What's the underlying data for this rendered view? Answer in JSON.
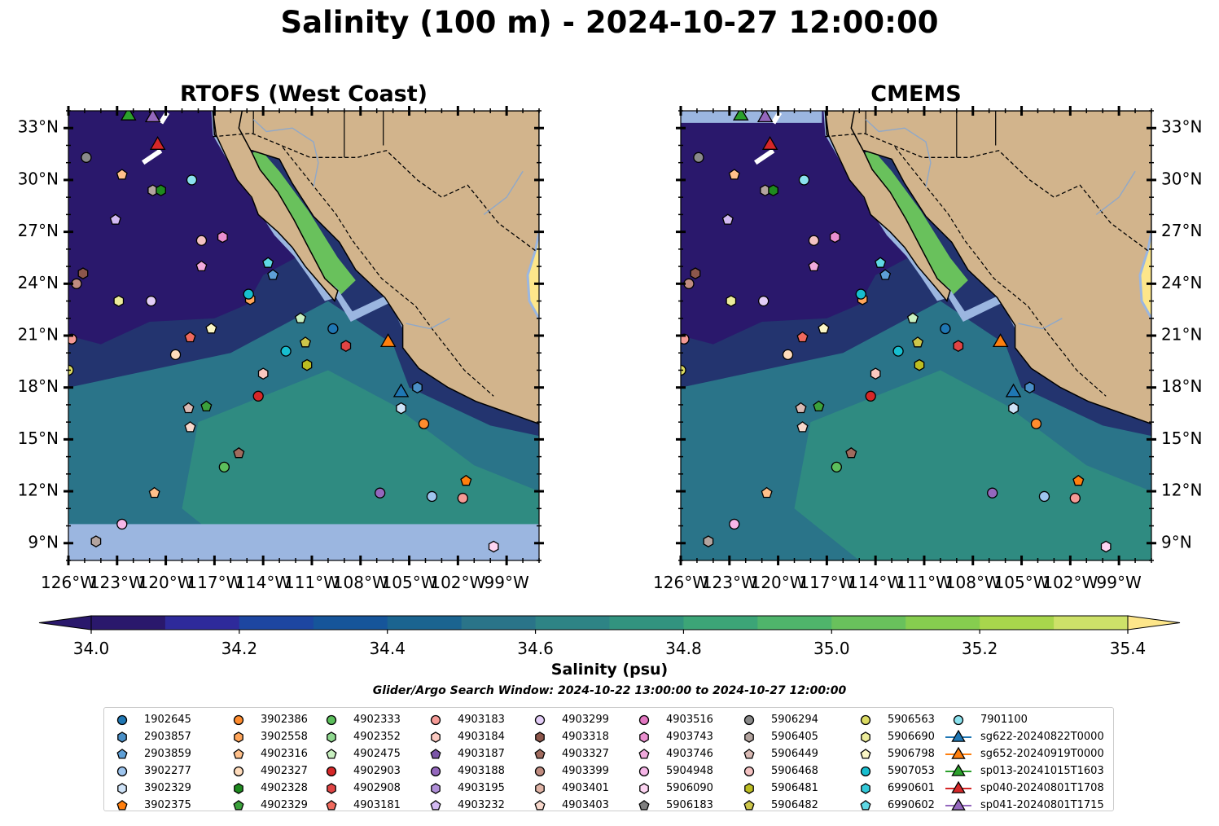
{
  "title": "Salinity (100 m) - 2024-10-27 12:00:00",
  "panels": [
    {
      "title": "RTOFS (West Coast)"
    },
    {
      "title": "CMEMS"
    }
  ],
  "map": {
    "lon_range": [
      -126,
      -97
    ],
    "lat_range": [
      8,
      34
    ],
    "lon_ticks": [
      "126°W",
      "123°W",
      "120°W",
      "117°W",
      "114°W",
      "111°W",
      "108°W",
      "105°W",
      "102°W",
      "99°W"
    ],
    "lat_ticks": [
      "9°N",
      "12°N",
      "15°N",
      "18°N",
      "21°N",
      "24°N",
      "27°N",
      "30°N",
      "33°N"
    ],
    "land_color": "#d2b48c",
    "shelf_color": "#9bb6e0",
    "rtofs_nodata_below_lat": 10.1
  },
  "colorbar": {
    "label": "Salinity (psu)",
    "range": [
      34.0,
      35.4
    ],
    "extend": "both",
    "tick_labels": [
      "34.0",
      "34.2",
      "34.4",
      "34.6",
      "34.8",
      "35.0",
      "35.2",
      "35.4"
    ],
    "colors": [
      "#2a186c",
      "#2e2a9b",
      "#1d46a1",
      "#16559a",
      "#1b6490",
      "#2a7489",
      "#2e8485",
      "#32937f",
      "#3ca577",
      "#4fb46b",
      "#69c15c",
      "#86cd4f",
      "#a8d64c",
      "#cde169",
      "#fde68a"
    ]
  },
  "search_window": "Glider/Argo Search Window: 2024-10-22 13:00:00 to 2024-10-27 12:00:00",
  "legend": {
    "columns": [
      [
        {
          "label": "1902645",
          "marker": "circle",
          "color": "#1f77b4"
        },
        {
          "label": "2903857",
          "marker": "hexagon",
          "color": "#4a8fc7"
        },
        {
          "label": "2903859",
          "marker": "pentagon",
          "color": "#5e9fd6"
        },
        {
          "label": "3902277",
          "marker": "circle",
          "color": "#9ec5ee"
        },
        {
          "label": "3902329",
          "marker": "hexagon",
          "color": "#cfe3f8"
        },
        {
          "label": "3902375",
          "marker": "pentagon",
          "color": "#ff7f0e"
        }
      ],
      [
        {
          "label": "3902386",
          "marker": "circle",
          "color": "#ff8c2e"
        },
        {
          "label": "3902558",
          "marker": "hexagon",
          "color": "#ffa55a"
        },
        {
          "label": "4902316",
          "marker": "pentagon",
          "color": "#ffc08a"
        },
        {
          "label": "4902327",
          "marker": "circle",
          "color": "#ffdcbc"
        },
        {
          "label": "4902328",
          "marker": "hexagon",
          "color": "#1f8a1f"
        },
        {
          "label": "4902329",
          "marker": "pentagon",
          "color": "#3ba13b"
        }
      ],
      [
        {
          "label": "4902333",
          "marker": "circle",
          "color": "#5cbf5c"
        },
        {
          "label": "4902352",
          "marker": "hexagon",
          "color": "#8fd88f"
        },
        {
          "label": "4902475",
          "marker": "pentagon",
          "color": "#c8f0c0"
        },
        {
          "label": "4902903",
          "marker": "circle",
          "color": "#d62728"
        },
        {
          "label": "4902908",
          "marker": "hexagon",
          "color": "#e04444"
        },
        {
          "label": "4903181",
          "marker": "pentagon",
          "color": "#f06a5e"
        }
      ],
      [
        {
          "label": "4903183",
          "marker": "circle",
          "color": "#f59a96"
        },
        {
          "label": "4903184",
          "marker": "hexagon",
          "color": "#fbc9c0"
        },
        {
          "label": "4903187",
          "marker": "pentagon",
          "color": "#7b55a8"
        },
        {
          "label": "4903188",
          "marker": "circle",
          "color": "#9467bd"
        },
        {
          "label": "4903195",
          "marker": "hexagon",
          "color": "#b08fd8"
        },
        {
          "label": "4903232",
          "marker": "pentagon",
          "color": "#d3baf2"
        }
      ],
      [
        {
          "label": "4903299",
          "marker": "circle",
          "color": "#e3cdf7"
        },
        {
          "label": "4903318",
          "marker": "hexagon",
          "color": "#8c564b"
        },
        {
          "label": "4903327",
          "marker": "pentagon",
          "color": "#a06b5e"
        },
        {
          "label": "4903399",
          "marker": "circle",
          "color": "#c08c80"
        },
        {
          "label": "4903401",
          "marker": "hexagon",
          "color": "#e0b4a6"
        },
        {
          "label": "4903403",
          "marker": "pentagon",
          "color": "#f8d8cc"
        }
      ],
      [
        {
          "label": "4903516",
          "marker": "circle",
          "color": "#e377c2"
        },
        {
          "label": "4903743",
          "marker": "hexagon",
          "color": "#ea8fcf"
        },
        {
          "label": "4903746",
          "marker": "pentagon",
          "color": "#f0a9dc"
        },
        {
          "label": "5904948",
          "marker": "circle",
          "color": "#f7b6e8"
        },
        {
          "label": "5906090",
          "marker": "hexagon",
          "color": "#fdd5f2"
        },
        {
          "label": "5906183",
          "marker": "pentagon",
          "color": "#7f7f7f"
        }
      ],
      [
        {
          "label": "5906294",
          "marker": "circle",
          "color": "#8a8a8a"
        },
        {
          "label": "5906405",
          "marker": "hexagon",
          "color": "#b3a49f"
        },
        {
          "label": "5906449",
          "marker": "pentagon",
          "color": "#d9bab4"
        },
        {
          "label": "5906468",
          "marker": "circle",
          "color": "#f4c2c2"
        },
        {
          "label": "5906481",
          "marker": "hexagon",
          "color": "#bcbd22"
        },
        {
          "label": "5906482",
          "marker": "pentagon",
          "color": "#cdc64a"
        }
      ],
      [
        {
          "label": "5906563",
          "marker": "circle",
          "color": "#dbdb62"
        },
        {
          "label": "5906690",
          "marker": "hexagon",
          "color": "#ecec9a"
        },
        {
          "label": "5906798",
          "marker": "pentagon",
          "color": "#fbf7c6"
        },
        {
          "label": "5907053",
          "marker": "circle",
          "color": "#17becf"
        },
        {
          "label": "6990601",
          "marker": "hexagon",
          "color": "#33c9d9"
        },
        {
          "label": "6990602",
          "marker": "pentagon",
          "color": "#5fd8e4"
        }
      ],
      [
        {
          "label": "7901100",
          "marker": "circle",
          "color": "#8be2ee"
        },
        {
          "label": "sg622-20240822T0000",
          "marker": "triangle-line",
          "color": "#1f77b4"
        },
        {
          "label": "sg652-20240919T0000",
          "marker": "triangle-line",
          "color": "#ff7f0e"
        },
        {
          "label": "sp013-20241015T1603",
          "marker": "triangle-line",
          "color": "#2ca02c"
        },
        {
          "label": "sp040-20240801T1708",
          "marker": "triangle-line",
          "color": "#d62728"
        },
        {
          "label": "sp041-20240801T1715",
          "marker": "triangle-line",
          "color": "#9467bd"
        }
      ]
    ]
  },
  "platforms": [
    {
      "id": "5906294",
      "lon": -124.9,
      "lat": 31.3,
      "marker": "circle",
      "color": "#8a8a8a"
    },
    {
      "id": "4902316",
      "lon": -122.7,
      "lat": 30.3,
      "marker": "pentagon",
      "color": "#ffc08a"
    },
    {
      "id": "5906405",
      "lon": -120.8,
      "lat": 29.4,
      "marker": "hexagon",
      "color": "#b3a49f"
    },
    {
      "id": "4902328",
      "lon": -120.3,
      "lat": 29.4,
      "marker": "hexagon",
      "color": "#1f8a1f"
    },
    {
      "id": "7901100",
      "lon": -118.4,
      "lat": 30.0,
      "marker": "circle",
      "color": "#8be2ee"
    },
    {
      "id": "4903232",
      "lon": -123.1,
      "lat": 27.7,
      "marker": "pentagon",
      "color": "#d3baf2"
    },
    {
      "id": "5906468",
      "lon": -117.8,
      "lat": 26.5,
      "marker": "circle",
      "color": "#f4c2c2"
    },
    {
      "id": "4903743",
      "lon": -116.5,
      "lat": 26.7,
      "marker": "hexagon",
      "color": "#ea8fcf"
    },
    {
      "id": "4903746",
      "lon": -117.8,
      "lat": 25.0,
      "marker": "pentagon",
      "color": "#f0a9dc"
    },
    {
      "id": "4903318",
      "lon": -125.1,
      "lat": 24.6,
      "marker": "hexagon",
      "color": "#8c564b"
    },
    {
      "id": "4903399",
      "lon": -125.5,
      "lat": 24.0,
      "marker": "circle",
      "color": "#c08c80"
    },
    {
      "id": "6990602",
      "lon": -113.7,
      "lat": 25.2,
      "marker": "pentagon",
      "color": "#5fd8e4"
    },
    {
      "id": "2903859",
      "lon": -113.4,
      "lat": 24.5,
      "marker": "pentagon",
      "color": "#5e9fd6"
    },
    {
      "id": "5906690",
      "lon": -122.9,
      "lat": 23.0,
      "marker": "hexagon",
      "color": "#ecec9a"
    },
    {
      "id": "4903299",
      "lon": -120.9,
      "lat": 23.0,
      "marker": "circle",
      "color": "#e3cdf7"
    },
    {
      "id": "3902558",
      "lon": -114.8,
      "lat": 23.1,
      "marker": "hexagon",
      "color": "#ffa55a"
    },
    {
      "id": "5907053",
      "lon": -114.9,
      "lat": 23.4,
      "marker": "circle",
      "color": "#17becf"
    },
    {
      "id": "4902475",
      "lon": -111.7,
      "lat": 22.0,
      "marker": "pentagon",
      "color": "#c8f0c0"
    },
    {
      "id": "1902645",
      "lon": -109.7,
      "lat": 21.4,
      "marker": "circle",
      "color": "#1f77b4"
    },
    {
      "id": "5906798",
      "lon": -117.2,
      "lat": 21.4,
      "marker": "pentagon",
      "color": "#fbf7c6"
    },
    {
      "id": "4903181",
      "lon": -118.5,
      "lat": 20.9,
      "marker": "pentagon",
      "color": "#f06a5e"
    },
    {
      "id": "4903183",
      "lon": -125.8,
      "lat": 20.8,
      "marker": "circle",
      "color": "#f59a96"
    },
    {
      "id": "5906482",
      "lon": -111.4,
      "lat": 20.6,
      "marker": "pentagon",
      "color": "#cdc64a"
    },
    {
      "id": "4902908",
      "lon": -108.9,
      "lat": 20.4,
      "marker": "hexagon",
      "color": "#e04444"
    },
    {
      "id": "5907053b",
      "lon": -112.6,
      "lat": 20.1,
      "marker": "circle",
      "color": "#17becf"
    },
    {
      "id": "4902327",
      "lon": -119.4,
      "lat": 19.9,
      "marker": "circle",
      "color": "#ffdcbc"
    },
    {
      "id": "5906481",
      "lon": -111.3,
      "lat": 19.3,
      "marker": "hexagon",
      "color": "#bcbd22"
    },
    {
      "id": "5906563",
      "lon": -126.0,
      "lat": 19.0,
      "marker": "circle",
      "color": "#dbdb62"
    },
    {
      "id": "4903184",
      "lon": -114.0,
      "lat": 18.8,
      "marker": "hexagon",
      "color": "#fbc9c0"
    },
    {
      "id": "2903857",
      "lon": -104.5,
      "lat": 18.0,
      "marker": "hexagon",
      "color": "#4a8fc7"
    },
    {
      "id": "4902903",
      "lon": -114.3,
      "lat": 17.5,
      "marker": "circle",
      "color": "#d62728"
    },
    {
      "id": "4902329",
      "lon": -117.5,
      "lat": 16.9,
      "marker": "pentagon",
      "color": "#3ba13b"
    },
    {
      "id": "5906449",
      "lon": -118.6,
      "lat": 16.8,
      "marker": "pentagon",
      "color": "#d9bab4"
    },
    {
      "id": "3902329",
      "lon": -105.5,
      "lat": 16.8,
      "marker": "hexagon",
      "color": "#cfe3f8"
    },
    {
      "id": "3902386",
      "lon": -104.1,
      "lat": 15.9,
      "marker": "circle",
      "color": "#ff8c2e"
    },
    {
      "id": "4903403",
      "lon": -118.5,
      "lat": 15.7,
      "marker": "pentagon",
      "color": "#f8d8cc"
    },
    {
      "id": "4903327",
      "lon": -115.5,
      "lat": 14.2,
      "marker": "pentagon",
      "color": "#a06b5e"
    },
    {
      "id": "4902333",
      "lon": -116.4,
      "lat": 13.4,
      "marker": "circle",
      "color": "#5cbf5c"
    },
    {
      "id": "3902375",
      "lon": -101.5,
      "lat": 12.6,
      "marker": "pentagon",
      "color": "#ff7f0e"
    },
    {
      "id": "4903188",
      "lon": -106.8,
      "lat": 11.9,
      "marker": "circle",
      "color": "#9467bd"
    },
    {
      "id": "3902277",
      "lon": -103.6,
      "lat": 11.7,
      "marker": "circle",
      "color": "#9ec5ee"
    },
    {
      "id": "4903183b",
      "lon": -101.7,
      "lat": 11.6,
      "marker": "circle",
      "color": "#f59a96"
    },
    {
      "id": "4902316b",
      "lon": -120.7,
      "lat": 11.9,
      "marker": "pentagon",
      "color": "#ffc08a"
    },
    {
      "id": "5904948",
      "lon": -122.7,
      "lat": 10.1,
      "marker": "circle",
      "color": "#f7b6e8"
    },
    {
      "id": "5906405b",
      "lon": -124.3,
      "lat": 9.1,
      "marker": "hexagon",
      "color": "#b3a49f"
    },
    {
      "id": "5906090",
      "lon": -99.8,
      "lat": 8.8,
      "marker": "hexagon",
      "color": "#fdd5f2"
    }
  ],
  "gliders": [
    {
      "id": "sp013-20241015T1603",
      "lon": -122.3,
      "lat": 33.8,
      "color": "#2ca02c"
    },
    {
      "id": "sp041-20240801T1715",
      "lon": -120.8,
      "lat": 33.7,
      "color": "#9467bd"
    },
    {
      "id": "sp040-20240801T1708",
      "lon": -120.5,
      "lat": 32.1,
      "color": "#d62728"
    },
    {
      "id": "sg652-20240919T0000",
      "lon": -106.3,
      "lat": 20.7,
      "color": "#ff7f0e"
    },
    {
      "id": "sg622-20240822T0000",
      "lon": -105.5,
      "lat": 17.8,
      "color": "#1f77b4"
    }
  ]
}
